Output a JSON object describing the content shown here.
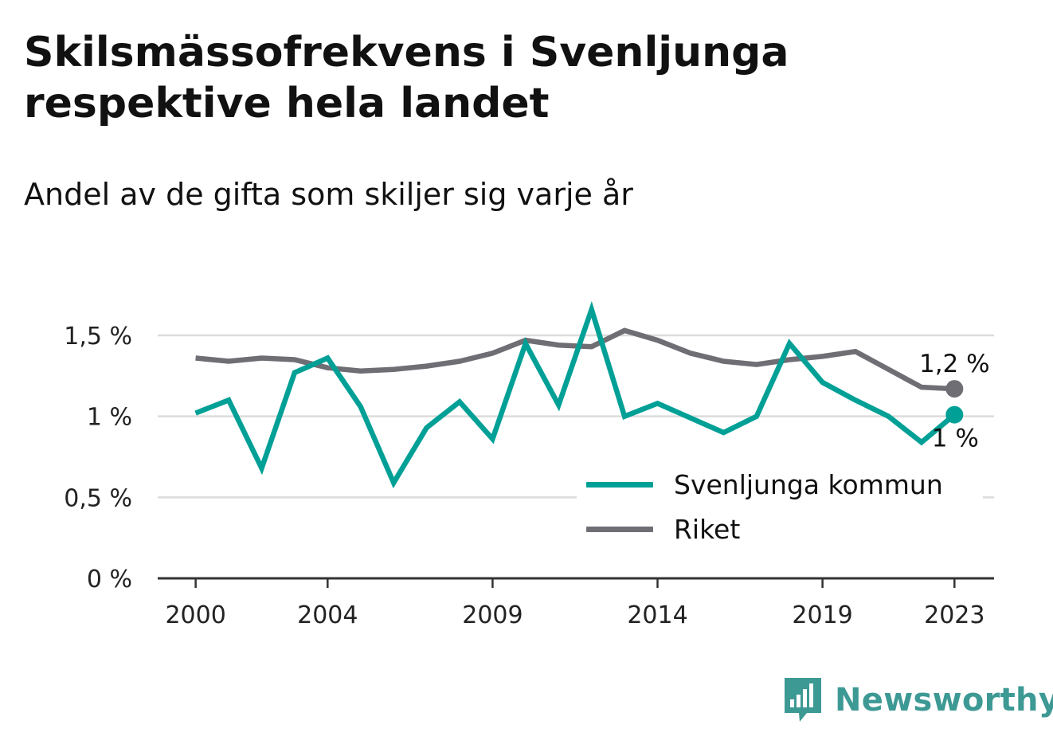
{
  "title": "Skilsmässofrekvens i Svenljunga respektive hela landet",
  "subtitle": "Andel av de gifta som skiljer sig varje år",
  "brand": {
    "name": "Newsworthy",
    "logo_icon": "newsworthy-bar-chart-bubble-icon",
    "color": "#3d9994"
  },
  "colors": {
    "svenljunga": "#00a096",
    "riket": "#6f6e75",
    "gridline": "#dcdcdc",
    "axis": "#333333"
  },
  "chart_data": {
    "type": "line",
    "x": [
      2000,
      2001,
      2002,
      2003,
      2004,
      2005,
      2006,
      2007,
      2008,
      2009,
      2010,
      2011,
      2012,
      2013,
      2014,
      2015,
      2016,
      2017,
      2018,
      2019,
      2020,
      2021,
      2022,
      2023
    ],
    "x_ticks": [
      {
        "value": 2000,
        "label": "2000"
      },
      {
        "value": 2004,
        "label": "2004"
      },
      {
        "value": 2009,
        "label": "2009"
      },
      {
        "value": 2014,
        "label": "2014"
      },
      {
        "value": 2019,
        "label": "2019"
      },
      {
        "value": 2023,
        "label": "2023"
      }
    ],
    "y_ticks": [
      {
        "value": 0,
        "label": "0 %"
      },
      {
        "value": 0.5,
        "label": "0,5 %"
      },
      {
        "value": 1,
        "label": "1 %"
      },
      {
        "value": 1.5,
        "label": "1,5 %"
      }
    ],
    "ylim": [
      0,
      1.8
    ],
    "xlim": [
      1998.85,
      2024.2
    ],
    "grid": true,
    "legend_position": "bottom-right",
    "series": [
      {
        "name": "Svenljunga kommun",
        "color": "#00a096",
        "values": [
          1.02,
          1.1,
          0.68,
          1.27,
          1.36,
          1.06,
          0.59,
          0.93,
          1.09,
          0.86,
          1.45,
          1.07,
          1.66,
          1.0,
          1.08,
          0.99,
          0.9,
          1.0,
          1.45,
          1.21,
          1.1,
          1.0,
          0.84,
          1.01
        ],
        "end_label": "1 %"
      },
      {
        "name": "Riket",
        "color": "#6f6e75",
        "values": [
          1.36,
          1.34,
          1.36,
          1.35,
          1.3,
          1.28,
          1.29,
          1.31,
          1.34,
          1.39,
          1.47,
          1.44,
          1.43,
          1.53,
          1.47,
          1.39,
          1.34,
          1.32,
          1.35,
          1.37,
          1.4,
          1.29,
          1.18,
          1.17
        ],
        "end_label": "1,2 %"
      }
    ]
  }
}
